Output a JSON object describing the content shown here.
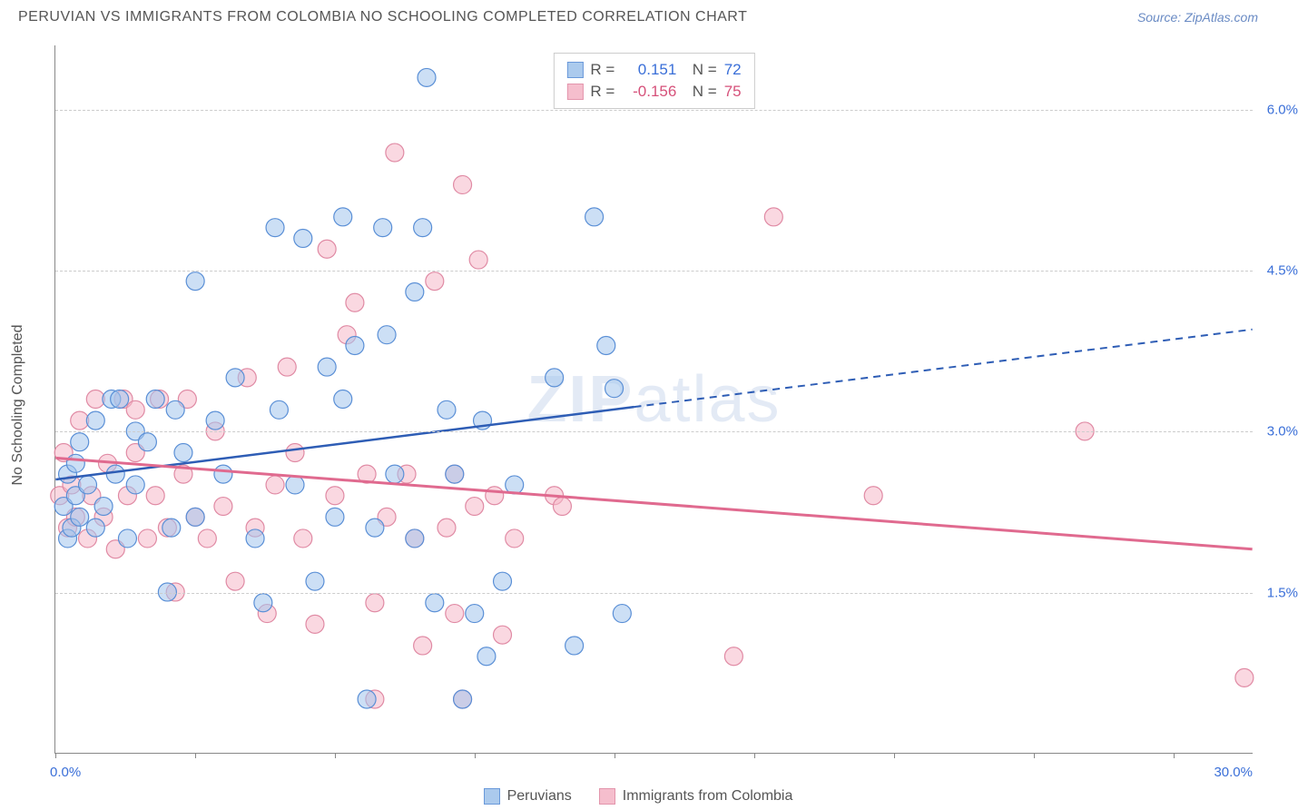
{
  "title": "PERUVIAN VS IMMIGRANTS FROM COLOMBIA NO SCHOOLING COMPLETED CORRELATION CHART",
  "source": "Source: ZipAtlas.com",
  "watermark": {
    "part1": "ZIP",
    "part2": "atlas"
  },
  "y_axis": {
    "title": "No Schooling Completed",
    "ticks": [
      1.5,
      3.0,
      4.5,
      6.0
    ],
    "tick_labels": [
      "1.5%",
      "3.0%",
      "4.5%",
      "6.0%"
    ],
    "min": 0,
    "max": 6.6
  },
  "x_axis": {
    "min": 0,
    "max": 30,
    "min_label": "0.0%",
    "max_label": "30.0%",
    "ticks": [
      0,
      3.5,
      7,
      10.5,
      14,
      17.5,
      21,
      24.5,
      28
    ]
  },
  "series": {
    "a": {
      "label": "Peruvians",
      "fill": "#a3c5ec",
      "stroke": "#5a8fd6",
      "fill_opacity": 0.55,
      "R": "0.151",
      "R_color": "#3a6fd8",
      "N": "72",
      "trend": {
        "x1": 0,
        "y1": 2.55,
        "x2": 30,
        "y2": 3.95,
        "solid_until_x": 14.5,
        "color": "#2e5db5",
        "width": 2.5
      },
      "points": [
        [
          0.2,
          2.3
        ],
        [
          0.3,
          2.6
        ],
        [
          0.3,
          2.0
        ],
        [
          0.4,
          2.1
        ],
        [
          0.5,
          2.4
        ],
        [
          0.5,
          2.7
        ],
        [
          0.6,
          2.2
        ],
        [
          0.6,
          2.9
        ],
        [
          0.8,
          2.5
        ],
        [
          1.0,
          2.1
        ],
        [
          1.0,
          3.1
        ],
        [
          1.2,
          2.3
        ],
        [
          1.4,
          3.3
        ],
        [
          1.5,
          2.6
        ],
        [
          1.6,
          3.3
        ],
        [
          1.8,
          2.0
        ],
        [
          2.0,
          2.5
        ],
        [
          2.0,
          3.0
        ],
        [
          2.3,
          2.9
        ],
        [
          2.5,
          3.3
        ],
        [
          2.8,
          1.5
        ],
        [
          2.9,
          2.1
        ],
        [
          3.0,
          3.2
        ],
        [
          3.2,
          2.8
        ],
        [
          3.5,
          4.4
        ],
        [
          3.5,
          2.2
        ],
        [
          4.0,
          3.1
        ],
        [
          4.2,
          2.6
        ],
        [
          4.5,
          3.5
        ],
        [
          5.0,
          2.0
        ],
        [
          5.2,
          1.4
        ],
        [
          5.5,
          4.9
        ],
        [
          5.6,
          3.2
        ],
        [
          6.0,
          2.5
        ],
        [
          6.2,
          4.8
        ],
        [
          6.5,
          1.6
        ],
        [
          6.8,
          3.6
        ],
        [
          7.0,
          2.2
        ],
        [
          7.2,
          3.3
        ],
        [
          7.2,
          5.0
        ],
        [
          7.5,
          3.8
        ],
        [
          7.8,
          0.5
        ],
        [
          8.0,
          2.1
        ],
        [
          8.2,
          4.9
        ],
        [
          8.3,
          3.9
        ],
        [
          8.5,
          2.6
        ],
        [
          9.0,
          4.3
        ],
        [
          9.0,
          2.0
        ],
        [
          9.2,
          4.9
        ],
        [
          9.3,
          6.3
        ],
        [
          9.5,
          1.4
        ],
        [
          9.8,
          3.2
        ],
        [
          10.0,
          2.6
        ],
        [
          10.2,
          0.5
        ],
        [
          10.5,
          1.3
        ],
        [
          10.7,
          3.1
        ],
        [
          10.8,
          0.9
        ],
        [
          11.2,
          1.6
        ],
        [
          11.5,
          2.5
        ],
        [
          12.5,
          3.5
        ],
        [
          13.0,
          1.0
        ],
        [
          13.5,
          5.0
        ],
        [
          13.8,
          3.8
        ],
        [
          14.0,
          3.4
        ],
        [
          14.2,
          1.3
        ]
      ]
    },
    "b": {
      "label": "Immigrants from Colombia",
      "fill": "#f5b8c8",
      "stroke": "#e08aa4",
      "fill_opacity": 0.55,
      "R": "-0.156",
      "R_color": "#d6517a",
      "N": "75",
      "trend": {
        "x1": 0,
        "y1": 2.75,
        "x2": 30,
        "y2": 1.9,
        "color": "#e06a8f",
        "width": 3
      },
      "points": [
        [
          0.1,
          2.4
        ],
        [
          0.2,
          2.8
        ],
        [
          0.3,
          2.1
        ],
        [
          0.4,
          2.5
        ],
        [
          0.5,
          2.2
        ],
        [
          0.6,
          3.1
        ],
        [
          0.8,
          2.0
        ],
        [
          0.9,
          2.4
        ],
        [
          1.0,
          3.3
        ],
        [
          1.2,
          2.2
        ],
        [
          1.3,
          2.7
        ],
        [
          1.5,
          1.9
        ],
        [
          1.7,
          3.3
        ],
        [
          1.8,
          2.4
        ],
        [
          2.0,
          2.8
        ],
        [
          2.0,
          3.2
        ],
        [
          2.3,
          2.0
        ],
        [
          2.5,
          2.4
        ],
        [
          2.6,
          3.3
        ],
        [
          2.8,
          2.1
        ],
        [
          3.0,
          1.5
        ],
        [
          3.2,
          2.6
        ],
        [
          3.3,
          3.3
        ],
        [
          3.5,
          2.2
        ],
        [
          3.8,
          2.0
        ],
        [
          4.0,
          3.0
        ],
        [
          4.2,
          2.3
        ],
        [
          4.5,
          1.6
        ],
        [
          4.8,
          3.5
        ],
        [
          5.0,
          2.1
        ],
        [
          5.3,
          1.3
        ],
        [
          5.5,
          2.5
        ],
        [
          5.8,
          3.6
        ],
        [
          6.0,
          2.8
        ],
        [
          6.2,
          2.0
        ],
        [
          6.5,
          1.2
        ],
        [
          6.8,
          4.7
        ],
        [
          7.0,
          2.4
        ],
        [
          7.3,
          3.9
        ],
        [
          7.5,
          4.2
        ],
        [
          7.8,
          2.6
        ],
        [
          8.0,
          1.4
        ],
        [
          8.0,
          0.5
        ],
        [
          8.3,
          2.2
        ],
        [
          8.5,
          5.6
        ],
        [
          8.8,
          2.6
        ],
        [
          9.0,
          2.0
        ],
        [
          9.2,
          1.0
        ],
        [
          9.5,
          4.4
        ],
        [
          9.8,
          2.1
        ],
        [
          10.0,
          2.6
        ],
        [
          10.0,
          1.3
        ],
        [
          10.2,
          0.5
        ],
        [
          10.2,
          5.3
        ],
        [
          10.5,
          2.3
        ],
        [
          10.6,
          4.6
        ],
        [
          11.0,
          2.4
        ],
        [
          11.2,
          1.1
        ],
        [
          11.5,
          2.0
        ],
        [
          12.5,
          2.4
        ],
        [
          12.7,
          2.3
        ],
        [
          17.0,
          0.9
        ],
        [
          18.0,
          5.0
        ],
        [
          20.5,
          2.4
        ],
        [
          25.8,
          3.0
        ],
        [
          29.8,
          0.7
        ]
      ]
    }
  },
  "marker_radius": 10,
  "background_color": "#ffffff",
  "grid_color": "#cccccc",
  "axis_color": "#888888"
}
